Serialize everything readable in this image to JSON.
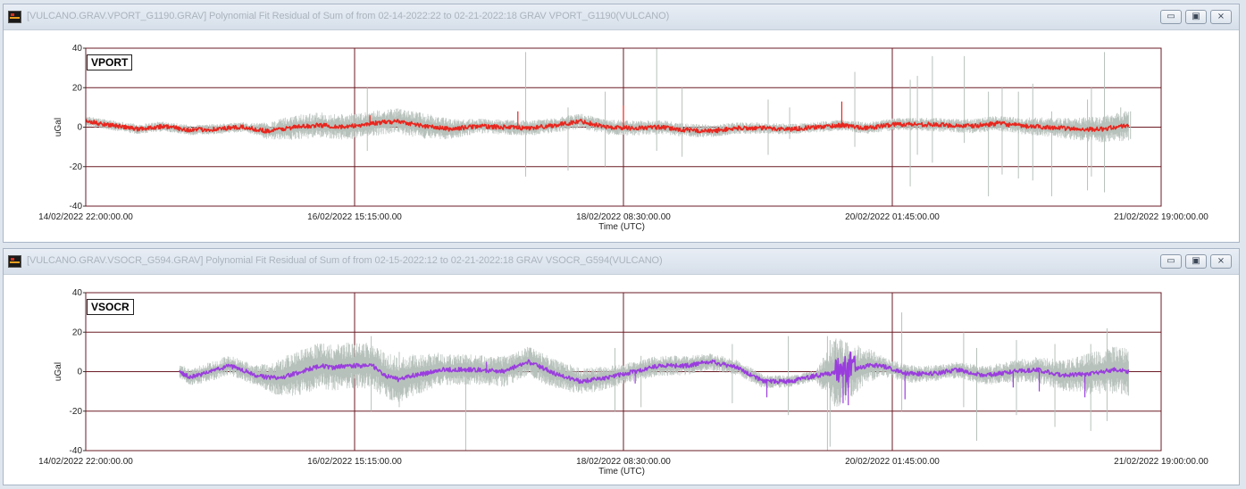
{
  "windows": [
    {
      "title": "[VULCANO.GRAV.VPORT_G1190.GRAV] Polynomial Fit Residual of Sum of from 02-14-2022:22 to 02-21-2022:18 GRAV VPORT_G1190(VULCANO)",
      "buttons": {
        "minimize": "▭",
        "maximize": "▣",
        "close": "⨯"
      }
    },
    {
      "title": "[VULCANO.GRAV.VSOCR_G594.GRAV] Polynomial Fit Residual of Sum of from 02-15-2022:12 to 02-21-2022:18 GRAV VSOCR_G594(VULCANO)",
      "buttons": {
        "minimize": "▭",
        "maximize": "▣",
        "close": "⨯"
      }
    }
  ],
  "chart_data": [
    {
      "type": "line",
      "title": "VPORT",
      "xlabel": "Time (UTC)",
      "ylabel": "uGal",
      "ylim": [
        -40,
        40
      ],
      "yticks": [
        -40,
        -20,
        0,
        20,
        40
      ],
      "xlim_hours": [
        0,
        165
      ],
      "xticks": [
        {
          "h": 0,
          "label": "14/02/2022 22:00:00.00"
        },
        {
          "h": 41.25,
          "label": "16/02/2022 15:15:00.00"
        },
        {
          "h": 82.5,
          "label": "18/02/2022 08:30:00.00"
        },
        {
          "h": 123.75,
          "label": "20/02/2022 01:45:00.00"
        },
        {
          "h": 165,
          "label": "21/02/2022 19:00:00.00"
        }
      ],
      "grid": true,
      "series": [
        {
          "color": "#e8261e",
          "start_hours": 0,
          "end_hours": 160,
          "points": [
            [
              0,
              3
            ],
            [
              4,
              1
            ],
            [
              8,
              -1
            ],
            [
              12,
              0.5
            ],
            [
              16,
              -1.5
            ],
            [
              20,
              -1
            ],
            [
              24,
              0
            ],
            [
              28,
              -2
            ],
            [
              32,
              0
            ],
            [
              36,
              1
            ],
            [
              40,
              0
            ],
            [
              44,
              2
            ],
            [
              48,
              3
            ],
            [
              52,
              0.5
            ],
            [
              56,
              -1
            ],
            [
              60,
              0.5
            ],
            [
              64,
              0
            ],
            [
              68,
              -0.5
            ],
            [
              72,
              1
            ],
            [
              76,
              3
            ],
            [
              80,
              0
            ],
            [
              84,
              -0.5
            ],
            [
              88,
              0
            ],
            [
              92,
              -1.5
            ],
            [
              96,
              -2
            ],
            [
              100,
              -0.5
            ],
            [
              104,
              -0.5
            ],
            [
              108,
              -1
            ],
            [
              112,
              0
            ],
            [
              116,
              1
            ],
            [
              120,
              -0.5
            ],
            [
              124,
              1.5
            ],
            [
              128,
              1.5
            ],
            [
              132,
              1
            ],
            [
              136,
              0.5
            ],
            [
              140,
              2
            ],
            [
              144,
              0.5
            ],
            [
              148,
              0
            ],
            [
              152,
              -1
            ],
            [
              156,
              -1
            ],
            [
              160,
              1
            ]
          ],
          "spikes": [
            [
              82.5,
              11
            ],
            [
              116,
              13
            ],
            [
              66.3,
              8
            ],
            [
              43.6,
              6
            ]
          ]
        }
      ],
      "envelope": {
        "color": "#b7c1bb",
        "width_points": [
          [
            0,
            2
          ],
          [
            25,
            2
          ],
          [
            32,
            5
          ],
          [
            52,
            5
          ],
          [
            60,
            3
          ],
          [
            84,
            3
          ],
          [
            110,
            2
          ],
          [
            140,
            3
          ],
          [
            150,
            4
          ],
          [
            160,
            6
          ]
        ],
        "glitches": [
          [
            43.2,
            -12,
            20
          ],
          [
            67.5,
            -25,
            38
          ],
          [
            74,
            -22,
            10
          ],
          [
            79.7,
            -20,
            18
          ],
          [
            87.6,
            -12,
            40
          ],
          [
            91.5,
            -15,
            20
          ],
          [
            104.7,
            -14,
            14
          ],
          [
            108,
            -6,
            10
          ],
          [
            118,
            -10,
            28
          ],
          [
            126.5,
            -30,
            24
          ],
          [
            127.6,
            -14,
            26
          ],
          [
            129.9,
            -18,
            36
          ],
          [
            134.8,
            -8,
            36
          ],
          [
            138.5,
            -35,
            18
          ],
          [
            140.6,
            -24,
            20
          ],
          [
            143.1,
            -26,
            18
          ],
          [
            145.3,
            -27,
            22
          ],
          [
            148.2,
            -35,
            8
          ],
          [
            153.7,
            -32,
            14
          ],
          [
            154.3,
            -25,
            20
          ],
          [
            156.3,
            -33,
            38
          ],
          [
            158.8,
            -2,
            10
          ],
          [
            160.3,
            -6,
            8
          ]
        ]
      }
    },
    {
      "type": "line",
      "title": "VSOCR",
      "xlabel": "Time (UTC)",
      "ylabel": "uGal",
      "ylim": [
        -40,
        40
      ],
      "yticks": [
        -40,
        -20,
        0,
        20,
        40
      ],
      "xlim_hours": [
        0,
        165
      ],
      "xticks": [
        {
          "h": 0,
          "label": "14/02/2022 22:00:00.00"
        },
        {
          "h": 41.25,
          "label": "16/02/2022 15:15:00.00"
        },
        {
          "h": 82.5,
          "label": "18/02/2022 08:30:00.00"
        },
        {
          "h": 123.75,
          "label": "20/02/2022 01:45:00.00"
        },
        {
          "h": 165,
          "label": "21/02/2022 19:00:00.00"
        }
      ],
      "grid": true,
      "series": [
        {
          "color": "#9a3dde",
          "start_hours": 14.4,
          "end_hours": 160,
          "points": [
            [
              14.4,
              0
            ],
            [
              16,
              -3
            ],
            [
              18,
              -1
            ],
            [
              20,
              1
            ],
            [
              22,
              3
            ],
            [
              24,
              1
            ],
            [
              26,
              -2
            ],
            [
              28,
              -3
            ],
            [
              30,
              -3
            ],
            [
              32,
              -1
            ],
            [
              34,
              1
            ],
            [
              36,
              3
            ],
            [
              38,
              2
            ],
            [
              40,
              3
            ],
            [
              42,
              3
            ],
            [
              44,
              3
            ],
            [
              46,
              -2
            ],
            [
              48,
              -4
            ],
            [
              50,
              -2
            ],
            [
              52,
              -1
            ],
            [
              54,
              1
            ],
            [
              56,
              1
            ],
            [
              58,
              1
            ],
            [
              60,
              1
            ],
            [
              64,
              0
            ],
            [
              68,
              5
            ],
            [
              72,
              -1
            ],
            [
              76,
              -5
            ],
            [
              80,
              -3
            ],
            [
              84,
              0
            ],
            [
              88,
              3
            ],
            [
              92,
              3
            ],
            [
              96,
              5
            ],
            [
              100,
              2
            ],
            [
              104,
              -5
            ],
            [
              108,
              -5
            ],
            [
              112,
              -2
            ],
            [
              116,
              0
            ],
            [
              118,
              1
            ],
            [
              120,
              3
            ],
            [
              122,
              3
            ],
            [
              124,
              1
            ],
            [
              126,
              -1
            ],
            [
              130,
              -1
            ],
            [
              134,
              1
            ],
            [
              138,
              -2
            ],
            [
              142,
              0
            ],
            [
              146,
              1
            ],
            [
              150,
              -2
            ],
            [
              154,
              -1
            ],
            [
              158,
              1
            ],
            [
              160,
              0
            ]
          ],
          "burst": {
            "from": 115,
            "to": 118,
            "amplitude": 9
          },
          "spikes": [
            [
              104.5,
              -13
            ],
            [
              116.2,
              -16
            ],
            [
              117,
              -17
            ],
            [
              116.6,
              -12
            ],
            [
              125.7,
              -14
            ],
            [
              84.3,
              -6
            ],
            [
              153.3,
              -13
            ],
            [
              146.3,
              -10
            ],
            [
              142.3,
              -8
            ],
            [
              61.5,
              5
            ]
          ]
        }
      ],
      "envelope": {
        "color": "#b7c1bb",
        "width_points": [
          [
            14.4,
            3
          ],
          [
            20,
            4
          ],
          [
            26,
            4
          ],
          [
            32,
            9
          ],
          [
            48,
            9
          ],
          [
            56,
            6
          ],
          [
            62,
            6
          ],
          [
            70,
            6
          ],
          [
            84,
            4
          ],
          [
            90,
            4
          ],
          [
            100,
            3
          ],
          [
            112,
            2
          ],
          [
            115,
            14
          ],
          [
            118,
            10
          ],
          [
            122,
            4
          ],
          [
            132,
            3
          ],
          [
            140,
            4
          ],
          [
            150,
            6
          ],
          [
            154,
            8
          ],
          [
            160,
            10
          ]
        ],
        "glitches": [
          [
            43.8,
            -20,
            18
          ],
          [
            48.1,
            -18,
            10
          ],
          [
            58.3,
            -40,
            5
          ],
          [
            81.2,
            -20,
            12
          ],
          [
            85.2,
            -18,
            8
          ],
          [
            99.2,
            -16,
            14
          ],
          [
            107.8,
            -22,
            18
          ],
          [
            113.8,
            -40,
            18
          ],
          [
            114.2,
            -38,
            16
          ],
          [
            125.2,
            -20,
            30
          ],
          [
            134.7,
            -18,
            20
          ],
          [
            136.7,
            -35,
            12
          ],
          [
            142.8,
            -22,
            16
          ],
          [
            148.7,
            -28,
            14
          ],
          [
            154.2,
            -30,
            14
          ],
          [
            156.7,
            -25,
            22
          ]
        ]
      }
    }
  ]
}
